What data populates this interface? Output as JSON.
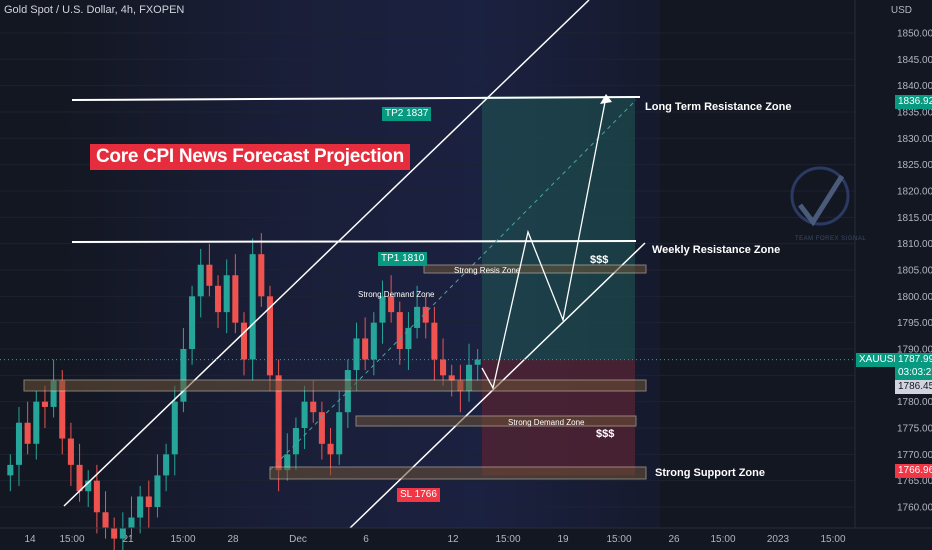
{
  "header": {
    "title": "Gold Spot / U.S. Dollar, 4h, FXOPEN",
    "axis_unit": "USD"
  },
  "banner": "Core CPI News Forecast Projection",
  "zones": {
    "long_term_resistance": "Long Term Resistance Zone",
    "weekly_resistance": "Weekly Resistance Zone",
    "strong_support": "Strong Support Zone",
    "strong_demand_top": "Strong Demand Zone",
    "strong_resis": "Strong Resis Zone",
    "strong_demand_box": "Strong Demand Zone"
  },
  "targets": {
    "tp2": "TP2 1837",
    "tp1": "TP1 1810",
    "sl": "SL 1766"
  },
  "dollar_marks": [
    "$$$",
    "$$$"
  ],
  "price_tags": {
    "resistance": "1836.92",
    "symbol": "XAUUSD",
    "current": "1787.99",
    "countdown": "03:03:27",
    "level": "1786.45",
    "support": "1766.96"
  },
  "logo": {
    "text": "TEAM FOREX SIGNAL"
  },
  "colors": {
    "background": "#131722",
    "up": "#26a69a",
    "down": "#ef5350",
    "banner": "#e52d3d",
    "tag_green": "#089981",
    "tag_red": "#f23645"
  },
  "chart_data": {
    "type": "candlestick",
    "title": "Gold Spot / U.S. Dollar, 4h, FXOPEN",
    "ylim": [
      1756,
      1855
    ],
    "y_ticks": [
      1760,
      1765,
      1770,
      1775,
      1780,
      1785,
      1790,
      1795,
      1800,
      1805,
      1810,
      1815,
      1820,
      1825,
      1830,
      1835,
      1840,
      1845,
      1850
    ],
    "x_ticks": [
      "14",
      "15:00",
      "21",
      "15:00",
      "28",
      "Dec",
      "6",
      "12",
      "15:00",
      "19",
      "15:00",
      "26",
      "15:00",
      "2023",
      "15:00"
    ],
    "levels": {
      "long_term_resistance": 1837,
      "weekly_resistance": 1811,
      "tp2": 1837,
      "tp1": 1810,
      "sl": 1766,
      "current": 1787.99,
      "zone_1786": 1786.45,
      "support": 1766.96
    },
    "candles_close_path": [
      1768,
      1776,
      1772,
      1780,
      1779,
      1784,
      1773,
      1768,
      1763,
      1765,
      1759,
      1756,
      1754,
      1756,
      1758,
      1762,
      1760,
      1766,
      1770,
      1780,
      1790,
      1800,
      1806,
      1802,
      1797,
      1804,
      1795,
      1788,
      1808,
      1800,
      1785,
      1767,
      1770,
      1775,
      1780,
      1778,
      1772,
      1770,
      1778,
      1786,
      1792,
      1788,
      1795,
      1800,
      1797,
      1790,
      1794,
      1798,
      1795,
      1788,
      1785,
      1784,
      1782,
      1787,
      1788
    ]
  }
}
